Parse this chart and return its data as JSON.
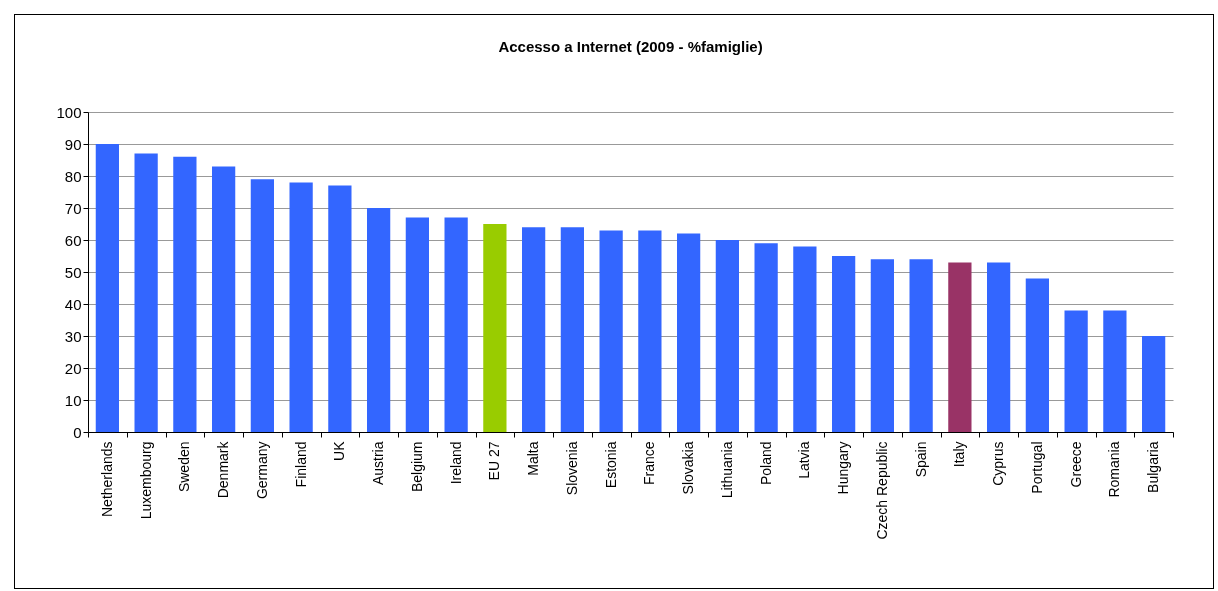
{
  "chart_data": {
    "type": "bar",
    "title": "Accesso a Internet (2009 - %famiglie)",
    "categories": [
      "Netherlands",
      "Luxembourg",
      "Sweden",
      "Denmark",
      "Germany",
      "Finland",
      "UK",
      "Austria",
      "Belgium",
      "Ireland",
      "EU 27",
      "Malta",
      "Slovenia",
      "Estonia",
      "France",
      "Slovakia",
      "Lithuania",
      "Poland",
      "Latvia",
      "Hungary",
      "Czech Republic",
      "Spain",
      "Italy",
      "Cyprus",
      "Portugal",
      "Greece",
      "Romania",
      "Bulgaria"
    ],
    "values": [
      90,
      87,
      86,
      83,
      79,
      78,
      77,
      70,
      67,
      67,
      65,
      64,
      64,
      63,
      63,
      62,
      60,
      59,
      58,
      55,
      54,
      54,
      53,
      53,
      48,
      38,
      38,
      30
    ],
    "colors": [
      "#3366ff",
      "#3366ff",
      "#3366ff",
      "#3366ff",
      "#3366ff",
      "#3366ff",
      "#3366ff",
      "#3366ff",
      "#3366ff",
      "#3366ff",
      "#99cc00",
      "#3366ff",
      "#3366ff",
      "#3366ff",
      "#3366ff",
      "#3366ff",
      "#3366ff",
      "#3366ff",
      "#3366ff",
      "#3366ff",
      "#3366ff",
      "#3366ff",
      "#993366",
      "#3366ff",
      "#3366ff",
      "#3366ff",
      "#3366ff",
      "#3366ff"
    ],
    "ylim": [
      0,
      100
    ],
    "yticks": [
      0,
      10,
      20,
      30,
      40,
      50,
      60,
      70,
      80,
      90,
      100
    ],
    "grid": "y"
  }
}
